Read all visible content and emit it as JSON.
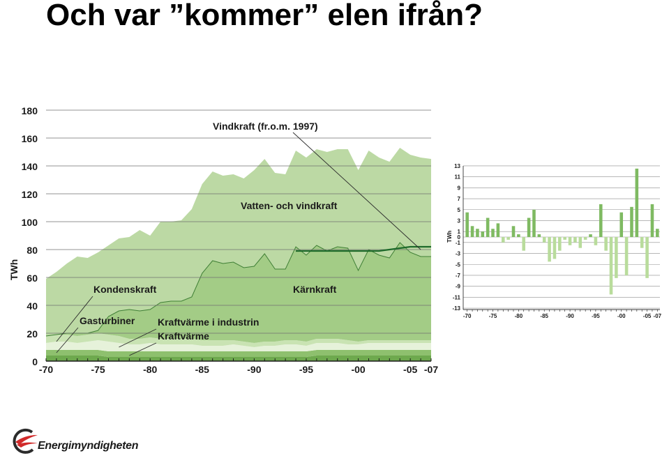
{
  "slide": {
    "title": "Och var ”kommer” elen ifrån?"
  },
  "colors": {
    "hydro_wind": "#bcd9a4",
    "nuclear": "#a3cc86",
    "condensing": "#c9e3b3",
    "gas_turbines": "#e6f2da",
    "industrial_chp": "#8ec06e",
    "chp": "#6ea94e",
    "wind_line": "#1d6a2a",
    "bar_positive": "#7fba62",
    "bar_negative": "#b9dc9c",
    "text": "#1a1a1a"
  },
  "chart_data": [
    {
      "type": "area",
      "ylabel": "TWh",
      "ylim": [
        0,
        180
      ],
      "yticks": [
        "0",
        "20",
        "40",
        "60",
        "80",
        "100",
        "120",
        "140",
        "160",
        "180"
      ],
      "xticklabels": [
        "-70",
        "-75",
        "-80",
        "-85",
        "-90",
        "-95",
        "-00",
        "-05",
        "-07"
      ],
      "x": [
        1970,
        1971,
        1972,
        1973,
        1974,
        1975,
        1976,
        1977,
        1978,
        1979,
        1980,
        1981,
        1982,
        1983,
        1984,
        1985,
        1986,
        1987,
        1988,
        1989,
        1990,
        1991,
        1992,
        1993,
        1994,
        1995,
        1996,
        1997,
        1998,
        1999,
        2000,
        2001,
        2002,
        2003,
        2004,
        2005,
        2006,
        2007
      ],
      "series": [
        {
          "key": "chp",
          "label": "Kraftvärme",
          "values": [
            4,
            4,
            4,
            4,
            4,
            4,
            3,
            3,
            3,
            3,
            3,
            3,
            3,
            3,
            3,
            3,
            3,
            3,
            3,
            3,
            3,
            3,
            3,
            3,
            3,
            3,
            4,
            4,
            4,
            4,
            4,
            4,
            4,
            4,
            4,
            4,
            4,
            4
          ]
        },
        {
          "key": "industrial_chp",
          "label": "Kraftvärme i industrin",
          "values": [
            4,
            4,
            4,
            4,
            4,
            4,
            4,
            4,
            4,
            4,
            4,
            4,
            4,
            4,
            4,
            4,
            4,
            4,
            4,
            4,
            4,
            4,
            4,
            4,
            4,
            4,
            4,
            4,
            4,
            4,
            4,
            4,
            4,
            4,
            4,
            4,
            4,
            4
          ]
        },
        {
          "key": "gas_turbines",
          "label": "Gasturbiner",
          "values": [
            5,
            6,
            6,
            5,
            6,
            7,
            7,
            6,
            5,
            5,
            6,
            5,
            5,
            5,
            5,
            4,
            4,
            4,
            5,
            4,
            3,
            4,
            4,
            5,
            5,
            4,
            5,
            5,
            5,
            4,
            4,
            5,
            5,
            5,
            5,
            5,
            5,
            5
          ]
        },
        {
          "key": "condensing",
          "label": "Kondenskraft",
          "values": [
            5,
            5,
            5,
            5,
            5,
            5,
            5,
            5,
            4,
            4,
            4,
            4,
            4,
            4,
            4,
            4,
            4,
            4,
            3,
            3,
            3,
            3,
            3,
            3,
            3,
            3,
            3,
            3,
            3,
            3,
            2,
            2,
            2,
            2,
            2,
            2,
            2,
            2
          ]
        },
        {
          "key": "nuclear",
          "label": "Kärnkraft",
          "values": [
            0,
            0,
            1,
            2,
            1,
            2,
            13,
            18,
            21,
            20,
            20,
            26,
            27,
            27,
            30,
            48,
            57,
            55,
            56,
            53,
            55,
            63,
            52,
            51,
            67,
            62,
            67,
            63,
            66,
            66,
            51,
            65,
            61,
            59,
            70,
            63,
            60,
            60
          ]
        },
        {
          "key": "hydro_wind",
          "label": "Vatten- och vindkraft",
          "values": [
            41,
            45,
            50,
            55,
            54,
            56,
            51,
            52,
            52,
            58,
            53,
            58,
            57,
            58,
            63,
            64,
            64,
            63,
            63,
            64,
            69,
            68,
            69,
            68,
            69,
            70,
            69,
            71,
            70,
            71,
            72,
            71,
            70,
            69,
            68,
            70,
            71,
            70
          ]
        }
      ],
      "wind_line": {
        "label": "Vindkraft (fr.o.m. 1997)",
        "values_total": [
          79,
          79,
          79,
          79,
          79,
          79,
          79,
          79,
          79,
          80,
          81,
          82,
          82,
          82
        ]
      }
    },
    {
      "type": "bar",
      "ylabel": "TWh",
      "ylim": [
        -13,
        13
      ],
      "yticks": [
        "13",
        "11",
        "9",
        "7",
        "5",
        "3",
        "1",
        "0",
        "-1",
        "-3",
        "-5",
        "-7",
        "-9",
        "-11",
        "-13"
      ],
      "xticklabels": [
        "-70",
        "-75",
        "-80",
        "-85",
        "-90",
        "-95",
        "-00",
        "-05",
        "-07"
      ],
      "x": [
        1970,
        1971,
        1972,
        1973,
        1974,
        1975,
        1976,
        1977,
        1978,
        1979,
        1980,
        1981,
        1982,
        1983,
        1984,
        1985,
        1986,
        1987,
        1988,
        1989,
        1990,
        1991,
        1992,
        1993,
        1994,
        1995,
        1996,
        1997,
        1998,
        1999,
        2000,
        2001,
        2002,
        2003,
        2004,
        2005,
        2006,
        2007
      ],
      "values": [
        4.5,
        2,
        1.5,
        1,
        3.5,
        1.5,
        2.5,
        -1,
        -0.5,
        2,
        0.5,
        -2.5,
        3.5,
        5,
        0.5,
        -1,
        -4.5,
        -4,
        -2.5,
        -0.5,
        -1.5,
        -1,
        -2,
        -0.5,
        0.5,
        -1.5,
        6,
        -2.5,
        -10.5,
        -7.5,
        4.5,
        -7,
        5.5,
        12.5,
        -2,
        -7.5,
        6,
        1.5
      ]
    }
  ],
  "branding": {
    "logo_text": "Energimyndigheten"
  }
}
